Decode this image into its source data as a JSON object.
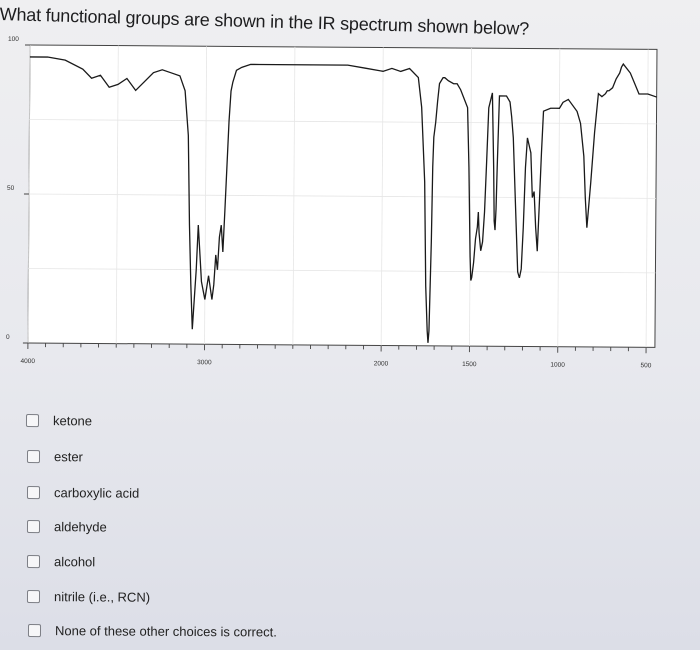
{
  "question": "What functional groups are shown in the IR spectrum shown below?",
  "chart_data": {
    "type": "line",
    "title": "",
    "xlabel": "",
    "ylabel": "",
    "y_tick_labels": [
      "100",
      "50",
      "0"
    ],
    "y_ticks": [
      100,
      50,
      0
    ],
    "x_tick_labels": [
      "4000",
      "3000",
      "2000",
      "1500",
      "1000",
      "500"
    ],
    "x_ticks": [
      4000,
      3000,
      2000,
      1500,
      1000,
      500
    ],
    "xlim": [
      4000,
      450
    ],
    "ylim": [
      0,
      100
    ],
    "grid": true,
    "series": [
      {
        "x": [
          4000,
          3900,
          3800,
          3700,
          3650,
          3600,
          3550,
          3500,
          3450,
          3400,
          3350,
          3300,
          3250,
          3200,
          3150,
          3120,
          3100,
          3090,
          3080,
          3070,
          3060,
          3050,
          3040,
          3020,
          3000,
          2980,
          2960,
          2950,
          2940,
          2930,
          2920,
          2910,
          2900,
          2890,
          2880,
          2870,
          2860,
          2850,
          2840,
          2830,
          2800,
          2750,
          2700,
          2600,
          2500,
          2400,
          2200,
          2100,
          2000,
          1950,
          1900,
          1850,
          1800,
          1780,
          1760,
          1750,
          1740,
          1735,
          1730,
          1725,
          1720,
          1715,
          1710,
          1700,
          1690,
          1680,
          1660,
          1650,
          1630,
          1600,
          1580,
          1560,
          1520,
          1510,
          1500,
          1495,
          1490,
          1480,
          1470,
          1460,
          1455,
          1450,
          1440,
          1430,
          1420,
          1410,
          1400,
          1380,
          1370,
          1365,
          1360,
          1355,
          1350,
          1340,
          1300,
          1280,
          1270,
          1260,
          1250,
          1240,
          1230,
          1220,
          1210,
          1200,
          1190,
          1180,
          1160,
          1150,
          1140,
          1130,
          1120,
          1110,
          1100,
          1090,
          1050,
          1020,
          1000,
          980,
          950,
          900,
          880,
          860,
          850,
          840,
          820,
          800,
          780,
          760,
          740,
          730,
          720,
          700,
          680,
          660,
          650,
          640,
          600,
          550,
          500,
          450
        ],
        "y": [
          96,
          96,
          95,
          92,
          89,
          90,
          86,
          87,
          89,
          85,
          88,
          91,
          92,
          91,
          90,
          85,
          70,
          40,
          20,
          5,
          15,
          25,
          40,
          21,
          15,
          23,
          15,
          20,
          30,
          25,
          36,
          40,
          31,
          45,
          60,
          75,
          85,
          88,
          90,
          92,
          93,
          94,
          94,
          94,
          94,
          94,
          94,
          93,
          92,
          93,
          92,
          93,
          90,
          80,
          55,
          20,
          5,
          1,
          5,
          20,
          35,
          60,
          70,
          75,
          82,
          88,
          90,
          90,
          89,
          88,
          88,
          86,
          80,
          60,
          30,
          22,
          23,
          28,
          36,
          40,
          45,
          38,
          32,
          35,
          45,
          62,
          80,
          85,
          60,
          42,
          39,
          46,
          60,
          84,
          84,
          82,
          77,
          70,
          55,
          40,
          25,
          23,
          26,
          40,
          60,
          70,
          65,
          50,
          52,
          40,
          32,
          48,
          65,
          79,
          80,
          80,
          80,
          82,
          83,
          79,
          75,
          64,
          50,
          40,
          55,
          72,
          85,
          84,
          85,
          86,
          86,
          87,
          90,
          92,
          94,
          95,
          92,
          85,
          85,
          84
        ]
      }
    ]
  },
  "options": [
    {
      "label": "ketone"
    },
    {
      "label": "ester"
    },
    {
      "label": "carboxylic acid"
    },
    {
      "label": "aldehyde"
    },
    {
      "label": "alcohol"
    },
    {
      "label": "nitrile (i.e., RCN)"
    },
    {
      "label": "None of these other choices is correct."
    }
  ]
}
